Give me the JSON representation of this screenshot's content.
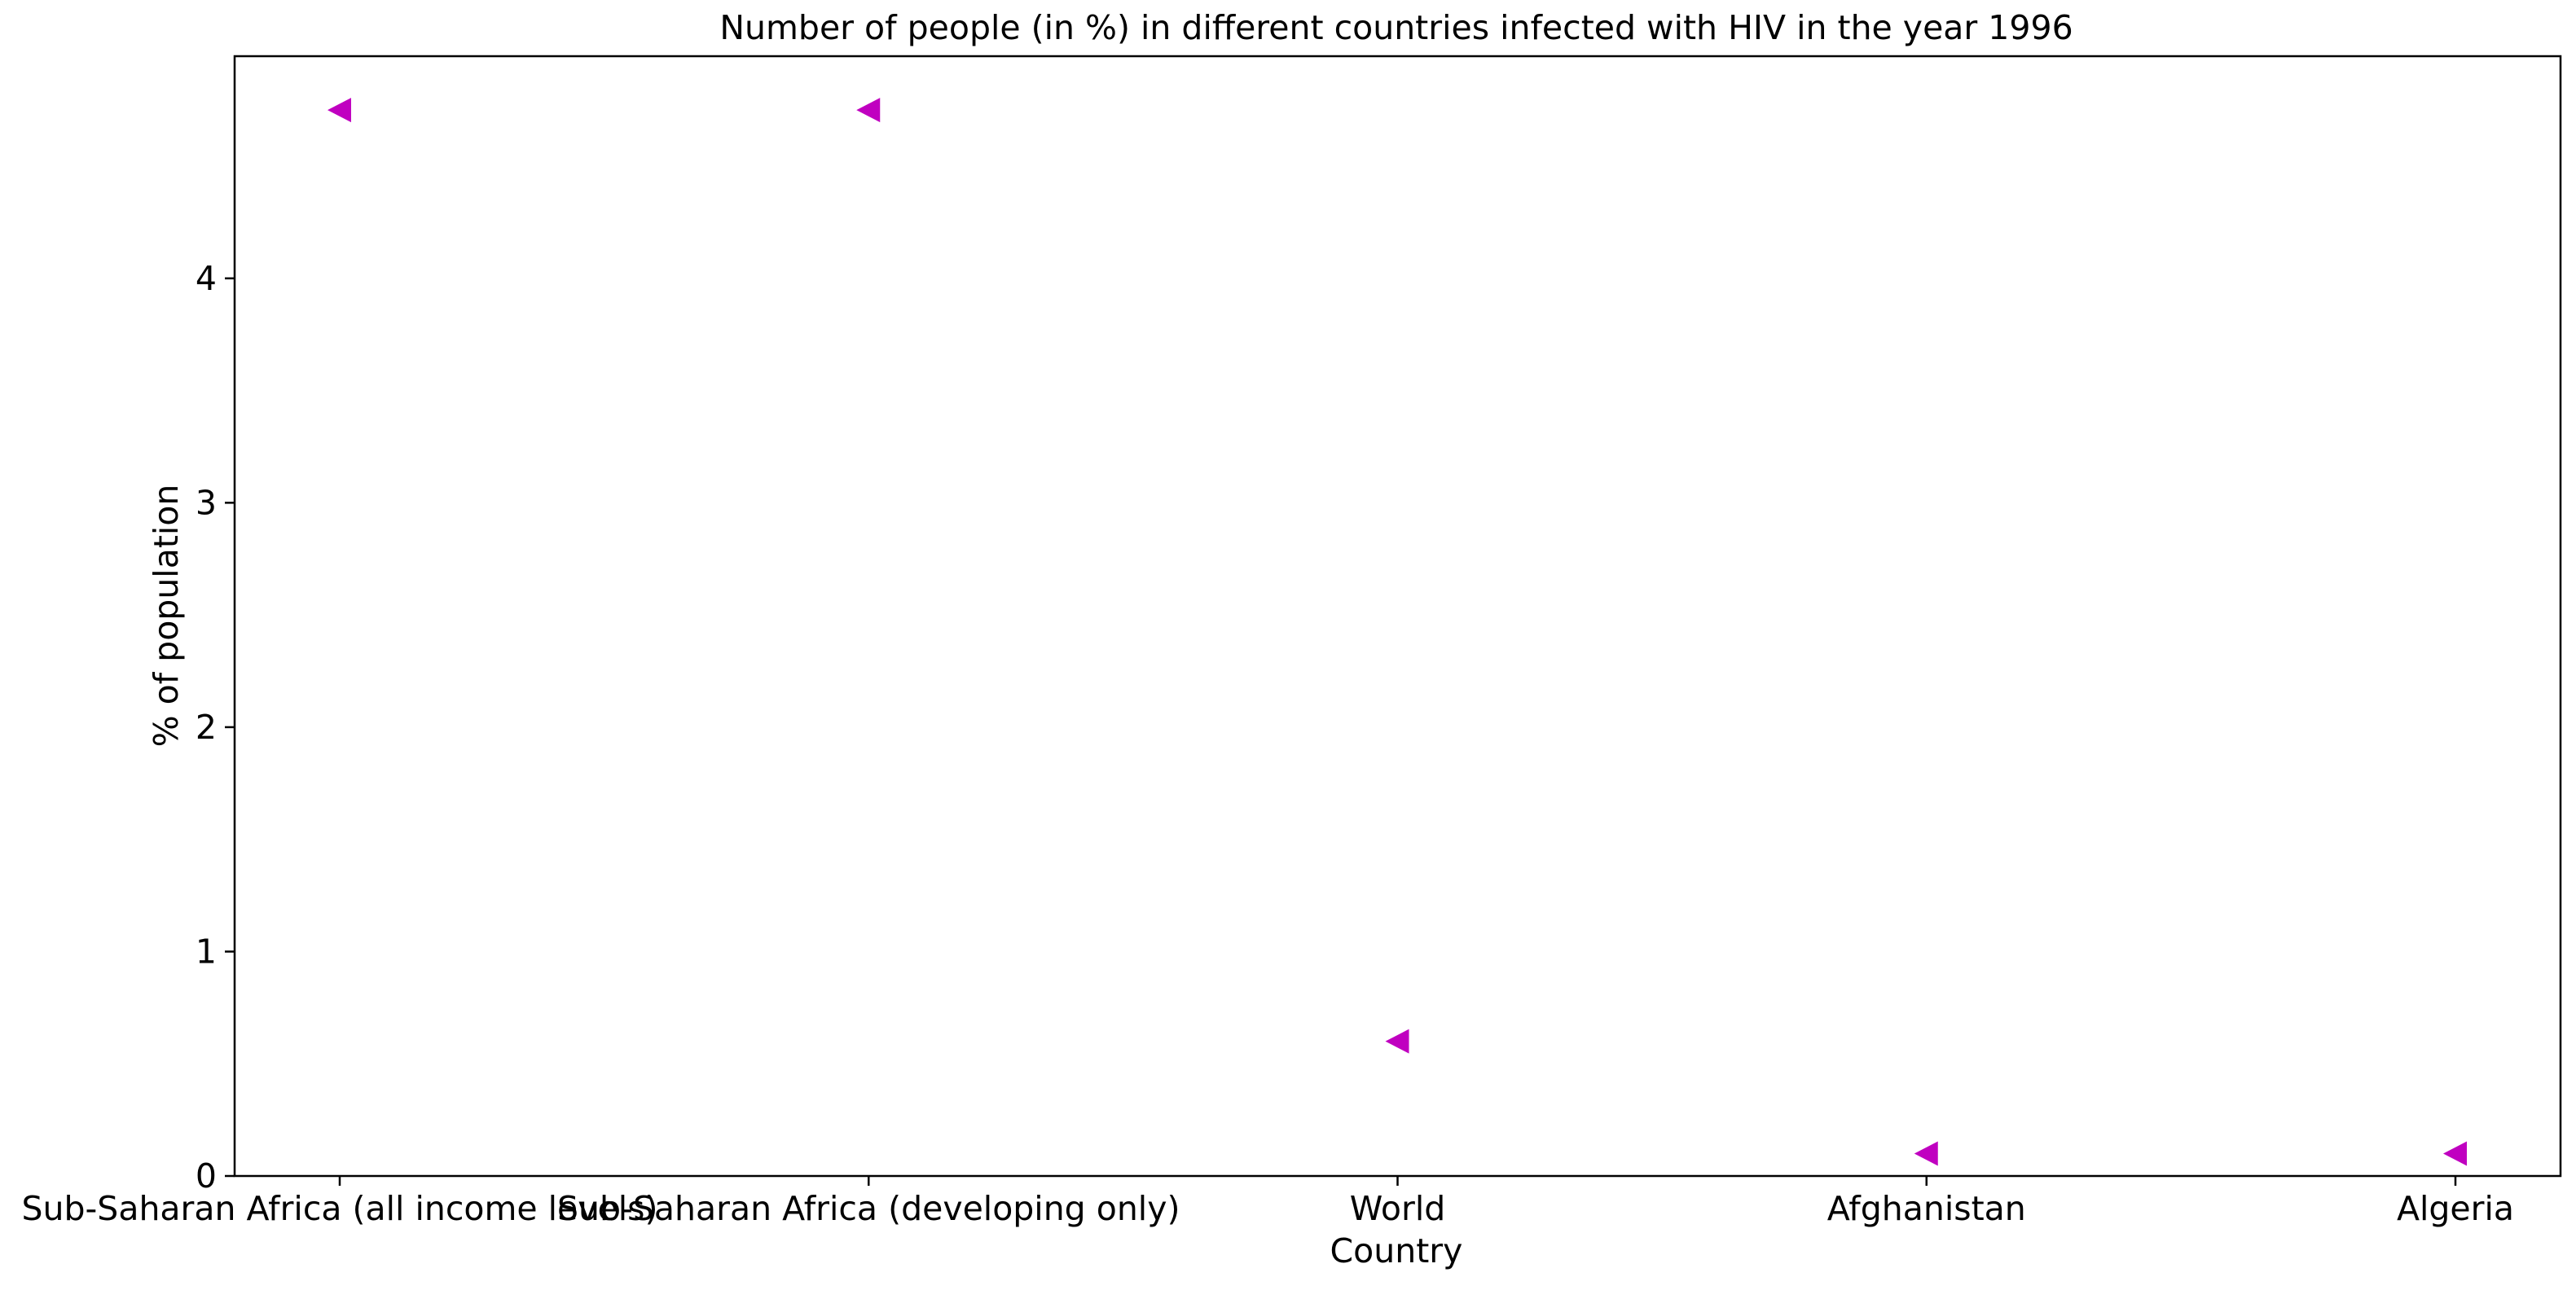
{
  "chart_data": {
    "type": "scatter",
    "title": "Number of people (in %) in different countries infected with HIV in the year 1996",
    "xlabel": "Country",
    "ylabel": "% of population",
    "categories": [
      "Sub-Saharan Africa (all income levels)",
      "Sub-Saharan Africa (developing only)",
      "World",
      "Afghanistan",
      "Algeria"
    ],
    "series": [
      {
        "marker": "triangle-left",
        "color": "#c000c0",
        "values": [
          4.75,
          4.75,
          0.6,
          0.1,
          0.1
        ]
      }
    ],
    "yticks": [
      "0",
      "1",
      "2",
      "3",
      "4"
    ],
    "ylim": [
      0,
      4.99
    ],
    "grid": false,
    "legend": "none"
  }
}
